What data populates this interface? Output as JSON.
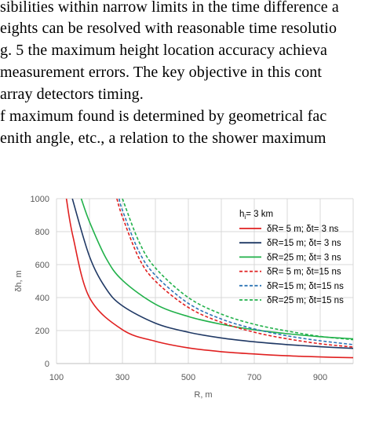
{
  "paper": {
    "lines": [
      "sibilities within narrow limits in the time difference a",
      "eights can be resolved with reasonable time resolutio",
      "g. 5 the maximum height location accuracy achieva",
      "measurement errors. The key objective in this cont",
      "array detectors timing.",
      "f maximum found is determined by geometrical fac",
      "enith angle, etc., a relation to the shower maximum"
    ]
  },
  "chart_data": {
    "type": "line",
    "title": "",
    "xlabel": "R, m",
    "ylabel": "δh, m",
    "xlim": [
      100,
      1000
    ],
    "ylim": [
      0,
      1000
    ],
    "xticks": [
      100,
      300,
      500,
      700,
      900
    ],
    "yticks": [
      0,
      200,
      400,
      600,
      800,
      1000
    ],
    "grid": true,
    "legend_position": "top-right",
    "legend_title": {
      "base": "h",
      "sub": "i",
      "rest": "= 3 km"
    },
    "colors": {
      "red": "#e02020",
      "navy": "#1f3864",
      "green": "#21b14a",
      "red_dashed": "#e02020",
      "blue_dashed": "#2e75b6",
      "green_dashed": "#21b14a",
      "grid": "#d9d9d9",
      "axis": "#bfbfbf",
      "text": "#595959"
    },
    "series": [
      {
        "name": "δR=  5 m; δt= 3 ns",
        "color_key": "red",
        "dash": false,
        "points": [
          [
            130,
            1000
          ],
          [
            150,
            770
          ],
          [
            200,
            400
          ],
          [
            300,
            205
          ],
          [
            400,
            135
          ],
          [
            500,
            95
          ],
          [
            600,
            72
          ],
          [
            700,
            58
          ],
          [
            800,
            47
          ],
          [
            900,
            40
          ],
          [
            1000,
            35
          ]
        ]
      },
      {
        "name": "δR=15 m; δt= 3 ns",
        "color_key": "navy",
        "dash": false,
        "points": [
          [
            148,
            1000
          ],
          [
            200,
            650
          ],
          [
            250,
            455
          ],
          [
            300,
            350
          ],
          [
            400,
            245
          ],
          [
            500,
            190
          ],
          [
            600,
            155
          ],
          [
            700,
            132
          ],
          [
            800,
            115
          ],
          [
            900,
            102
          ],
          [
            1000,
            92
          ]
        ]
      },
      {
        "name": "δR=25 m; δt= 3 ns",
        "color_key": "green",
        "dash": false,
        "points": [
          [
            175,
            1000
          ],
          [
            200,
            860
          ],
          [
            250,
            640
          ],
          [
            300,
            505
          ],
          [
            400,
            360
          ],
          [
            500,
            285
          ],
          [
            600,
            238
          ],
          [
            700,
            205
          ],
          [
            800,
            181
          ],
          [
            900,
            163
          ],
          [
            1000,
            150
          ]
        ]
      },
      {
        "name": "δR=  5 m; δt=15 ns",
        "color_key": "red_dashed",
        "dash": true,
        "points": [
          [
            283,
            1000
          ],
          [
            300,
            890
          ],
          [
            350,
            640
          ],
          [
            400,
            500
          ],
          [
            500,
            340
          ],
          [
            600,
            250
          ],
          [
            700,
            190
          ],
          [
            800,
            150
          ],
          [
            900,
            120
          ],
          [
            1000,
            100
          ]
        ]
      },
      {
        "name": "δR=15 m; δt=15 ns",
        "color_key": "blue_dashed",
        "dash": true,
        "points": [
          [
            290,
            1000
          ],
          [
            300,
            930
          ],
          [
            350,
            680
          ],
          [
            400,
            535
          ],
          [
            500,
            365
          ],
          [
            600,
            270
          ],
          [
            700,
            210
          ],
          [
            800,
            168
          ],
          [
            900,
            138
          ],
          [
            1000,
            115
          ]
        ]
      },
      {
        "name": "δR=25 m; δt=15 ns",
        "color_key": "green_dashed",
        "dash": true,
        "points": [
          [
            300,
            1000
          ],
          [
            350,
            740
          ],
          [
            400,
            580
          ],
          [
            500,
            400
          ],
          [
            600,
            300
          ],
          [
            700,
            238
          ],
          [
            800,
            197
          ],
          [
            900,
            165
          ],
          [
            1000,
            145
          ]
        ]
      }
    ]
  }
}
